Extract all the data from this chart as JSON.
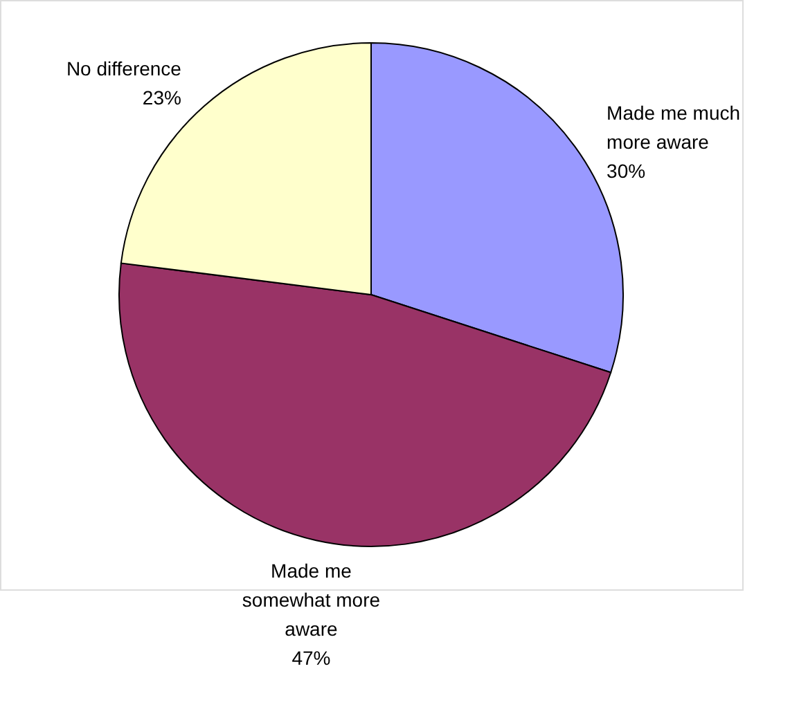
{
  "chart_data": {
    "type": "pie",
    "categories": [
      "Made me much more aware",
      "Made me somewhat more aware",
      "No difference"
    ],
    "values": [
      30,
      47,
      23
    ],
    "value_labels": [
      "30%",
      "47%",
      "23%"
    ],
    "colors": [
      "#9999ff",
      "#993366",
      "#ffffcc"
    ]
  }
}
